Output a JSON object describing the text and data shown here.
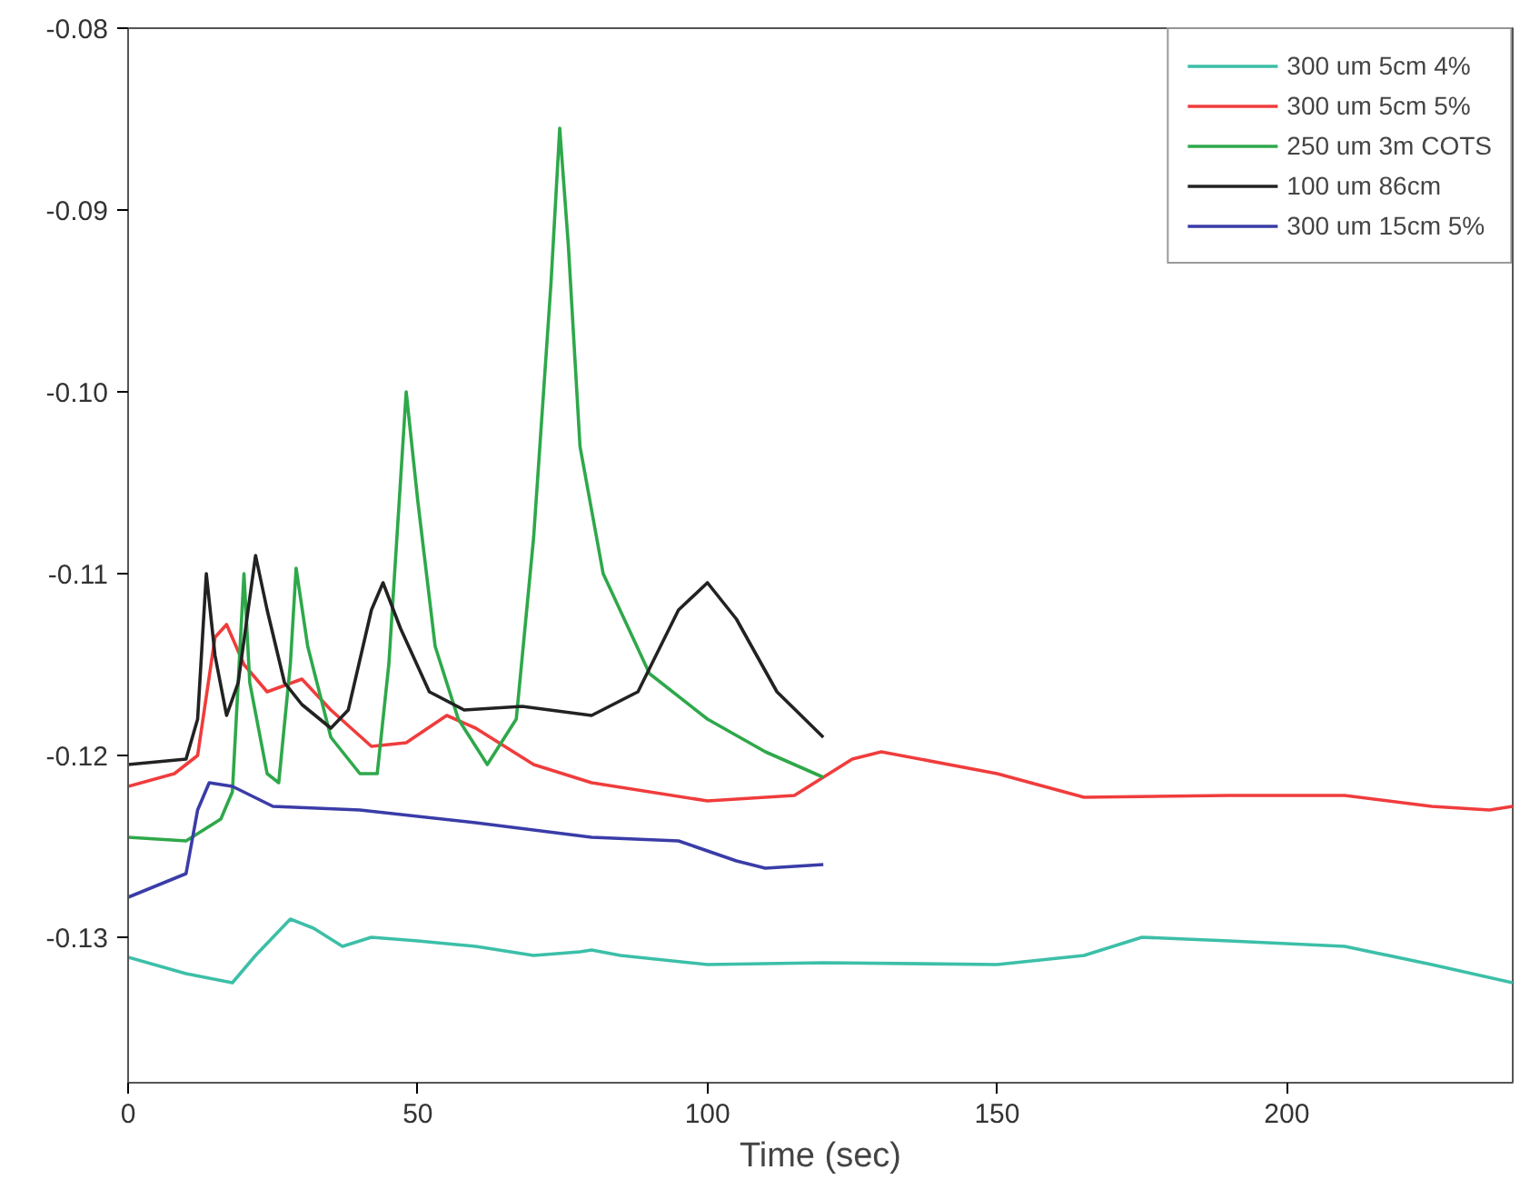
{
  "chart_data": {
    "type": "line",
    "xlabel": "Time (sec)",
    "xlim": [
      0,
      239
    ],
    "ylim": [
      -0.138,
      -0.08
    ],
    "xticks": [
      0,
      50,
      100,
      150,
      200
    ],
    "yticks": [
      {
        "value": -0.08,
        "label": "-0.08"
      },
      {
        "value": -0.09,
        "label": "-0.09"
      },
      {
        "value": -0.1,
        "label": "-0.10"
      },
      {
        "value": -0.11,
        "label": "-0.11"
      },
      {
        "value": -0.12,
        "label": "-0.12"
      },
      {
        "value": -0.13,
        "label": "-0.13"
      }
    ],
    "grid": false,
    "legend": "top right",
    "marker": "none",
    "line_style": "solid",
    "series": [
      {
        "name": "300 um 5cm 4%",
        "color": "#3cbfa8",
        "x": [
          0,
          10,
          18,
          22,
          28,
          32,
          37,
          42,
          50,
          60,
          70,
          78,
          80,
          85,
          100,
          120,
          150,
          165,
          175,
          190,
          210,
          225,
          239
        ],
        "values": [
          -0.1311,
          -0.132,
          -0.1325,
          -0.131,
          -0.129,
          -0.1295,
          -0.1305,
          -0.13,
          -0.1302,
          -0.1305,
          -0.131,
          -0.1308,
          -0.1307,
          -0.131,
          -0.1315,
          -0.1314,
          -0.1315,
          -0.131,
          -0.13,
          -0.1302,
          -0.1305,
          -0.1315,
          -0.1325
        ]
      },
      {
        "name": "300 um 5cm 5%",
        "color": "#f03c3c",
        "x": [
          0,
          8,
          12,
          15,
          17,
          20,
          24,
          30,
          35,
          42,
          48,
          55,
          60,
          70,
          80,
          100,
          115,
          125,
          130,
          150,
          165,
          190,
          210,
          225,
          235,
          239
        ],
        "values": [
          -0.1217,
          -0.121,
          -0.12,
          -0.1135,
          -0.1128,
          -0.115,
          -0.1165,
          -0.1158,
          -0.1175,
          -0.1195,
          -0.1193,
          -0.1178,
          -0.1185,
          -0.1205,
          -0.1215,
          -0.1225,
          -0.1222,
          -0.1202,
          -0.1198,
          -0.121,
          -0.1223,
          -0.1222,
          -0.1222,
          -0.1228,
          -0.123,
          -0.1228
        ]
      },
      {
        "name": "250 um 3m COTS",
        "color": "#2ea84a",
        "x": [
          0,
          10,
          16,
          18,
          20,
          21,
          24,
          26,
          28,
          29,
          31,
          35,
          40,
          43,
          45,
          48,
          50,
          53,
          57,
          62,
          67,
          70,
          73,
          74.5,
          76,
          78,
          82,
          90,
          100,
          110,
          120
        ],
        "values": [
          -0.1245,
          -0.1247,
          -0.1235,
          -0.122,
          -0.11,
          -0.116,
          -0.121,
          -0.1215,
          -0.115,
          -0.1097,
          -0.114,
          -0.119,
          -0.121,
          -0.121,
          -0.115,
          -0.1,
          -0.106,
          -0.114,
          -0.118,
          -0.1205,
          -0.118,
          -0.108,
          -0.094,
          -0.0855,
          -0.092,
          -0.103,
          -0.11,
          -0.1155,
          -0.118,
          -0.1198,
          -0.1212
        ]
      },
      {
        "name": "100 um 86cm",
        "color": "#222222",
        "x": [
          0,
          10,
          12,
          13.5,
          15,
          17,
          19,
          22,
          24,
          27,
          30,
          35,
          38,
          42,
          44,
          47,
          52,
          58,
          68,
          80,
          88,
          95,
          100,
          105,
          112,
          120
        ],
        "values": [
          -0.1205,
          -0.1202,
          -0.118,
          -0.11,
          -0.1145,
          -0.1178,
          -0.116,
          -0.109,
          -0.112,
          -0.116,
          -0.1172,
          -0.1185,
          -0.1175,
          -0.112,
          -0.1105,
          -0.113,
          -0.1165,
          -0.1175,
          -0.1173,
          -0.1178,
          -0.1165,
          -0.112,
          -0.1105,
          -0.1125,
          -0.1165,
          -0.119
        ]
      },
      {
        "name": "300 um 15cm 5%",
        "color": "#3a3ca8",
        "x": [
          0,
          10,
          12,
          14,
          18,
          25,
          40,
          60,
          80,
          95,
          105,
          110,
          120
        ],
        "values": [
          -0.1278,
          -0.1265,
          -0.123,
          -0.1215,
          -0.1217,
          -0.1228,
          -0.123,
          -0.1237,
          -0.1245,
          -0.1247,
          -0.1258,
          -0.1262,
          -0.126
        ]
      }
    ]
  }
}
